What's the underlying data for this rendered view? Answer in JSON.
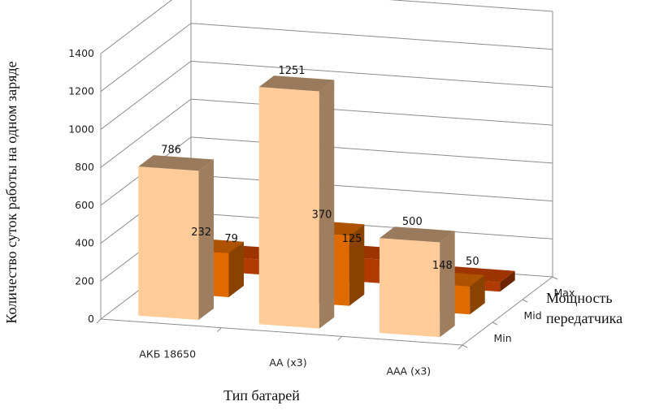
{
  "chart_data": {
    "type": "bar",
    "variant": "3d-column",
    "categories": [
      "АКБ 18650",
      "АА (x3)",
      "ААА (x3)"
    ],
    "series": [
      {
        "name": "Min",
        "values": [
          786,
          1251,
          500
        ],
        "color": "#FFCC99"
      },
      {
        "name": "Mid",
        "values": [
          232,
          370,
          148
        ],
        "color": "#DE6A00"
      },
      {
        "name": "Max",
        "values": [
          79,
          125,
          50
        ],
        "color": "#B03A00"
      }
    ],
    "ylabel": "Количество суток работы на одном заряде",
    "xlabel": "Тип батарей",
    "zlabel": "Мощность передатчика",
    "zlabel_lines": [
      "Мощность",
      "передатчика"
    ],
    "ylim": [
      0,
      1400
    ],
    "yticks": [
      0,
      200,
      400,
      600,
      800,
      1000,
      1200,
      1400
    ],
    "grid": true,
    "data_labels": true
  }
}
